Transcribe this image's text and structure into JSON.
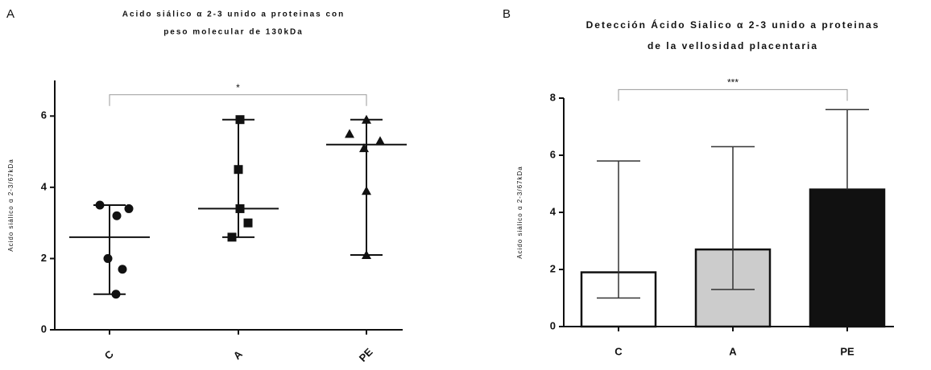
{
  "chart_data": [
    {
      "type": "dotplot",
      "panel": "A",
      "title": [
        "Acido siálico α 2-3 unido a proteinas con",
        "peso molecular de 130kDa"
      ],
      "y_label": "Acido siálico α 2-3/67kDa",
      "categories": [
        "C",
        "A",
        "PE"
      ],
      "markers": [
        "circle",
        "square",
        "triangle"
      ],
      "points": [
        [
          3.5,
          3.4,
          3.2,
          2.0,
          1.7,
          1.0
        ],
        [
          5.9,
          4.5,
          3.4,
          3.0,
          2.6
        ],
        [
          5.9,
          5.5,
          5.3,
          5.1,
          3.9,
          2.1
        ]
      ],
      "medians": [
        2.6,
        3.4,
        5.2
      ],
      "range_low": [
        1.0,
        2.6,
        2.1
      ],
      "range_high": [
        3.5,
        5.9,
        5.9
      ],
      "color": "#111111",
      "ylim": [
        0,
        7
      ],
      "yticks": [
        0,
        2,
        4,
        6
      ],
      "annotation": "*",
      "annotation_y": 6.6
    },
    {
      "type": "bar",
      "panel": "B",
      "title": [
        "Detección Ácido Sialico α 2-3 unido a proteinas",
        "de la vellosidad placentaria"
      ],
      "y_label": "Acido siálico α 2-3/67kDa",
      "categories": [
        "C",
        "A",
        "PE"
      ],
      "values": [
        1.9,
        2.7,
        4.8
      ],
      "error_low": [
        1.0,
        1.3,
        null
      ],
      "error_high": [
        5.8,
        6.3,
        7.6
      ],
      "colors": [
        "#ffffff",
        "#cccccc",
        "#111111"
      ],
      "ylim": [
        0,
        8
      ],
      "yticks": [
        0,
        2,
        4,
        6,
        8
      ],
      "annotation": "***",
      "annotation_y": 8.3
    }
  ]
}
